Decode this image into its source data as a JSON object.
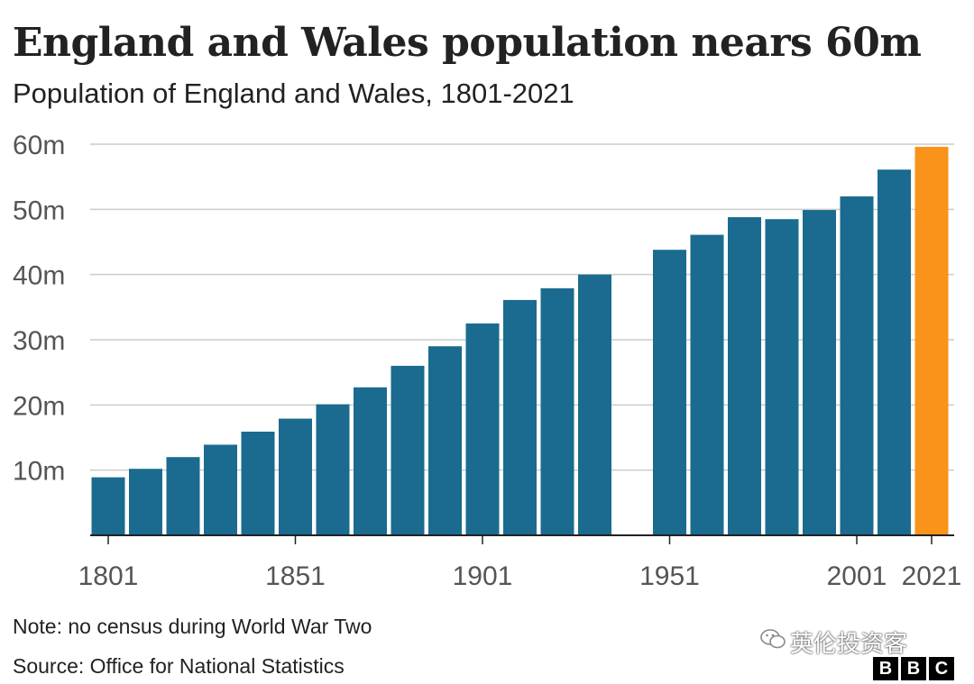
{
  "header": {
    "title": "England and Wales population nears 60m",
    "subtitle": "Population of England and Wales, 1801-2021"
  },
  "footer": {
    "note": "Note: no census during World War Two",
    "source": "Source: Office for National Statistics",
    "watermark": "英伦投资客",
    "logo": [
      "B",
      "B",
      "C"
    ]
  },
  "colors": {
    "bar": "#1a6b8f",
    "highlight": "#fa9319",
    "grid": "#cccccc",
    "axis": "#222222"
  },
  "chart_data": {
    "type": "bar",
    "title": "England and Wales population nears 60m",
    "subtitle": "Population of England and Wales, 1801-2021",
    "xlabel": "",
    "ylabel": "",
    "ylim": [
      0,
      60
    ],
    "y_unit": "m",
    "yticks": [
      "10m",
      "20m",
      "30m",
      "40m",
      "50m",
      "60m"
    ],
    "ytick_values": [
      10,
      20,
      30,
      40,
      50,
      60
    ],
    "xticks": [
      "1801",
      "1851",
      "1901",
      "1951",
      "2001",
      "2021"
    ],
    "grid": true,
    "categories": [
      "1801",
      "1811",
      "1821",
      "1831",
      "1841",
      "1851",
      "1861",
      "1871",
      "1881",
      "1891",
      "1901",
      "1911",
      "1921",
      "1931",
      "1951",
      "1961",
      "1971",
      "1981",
      "1991",
      "2001",
      "2011",
      "2021"
    ],
    "values": [
      8.9,
      10.2,
      12.0,
      13.9,
      15.9,
      17.9,
      20.1,
      22.7,
      26.0,
      29.0,
      32.5,
      36.1,
      37.9,
      40.0,
      43.8,
      46.1,
      48.8,
      48.5,
      49.9,
      52.0,
      56.1,
      59.6
    ],
    "highlight_category": "2021"
  }
}
